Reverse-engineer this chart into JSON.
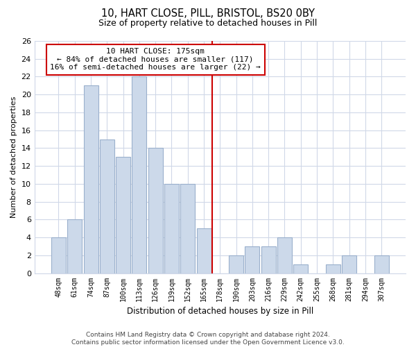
{
  "title": "10, HART CLOSE, PILL, BRISTOL, BS20 0BY",
  "subtitle": "Size of property relative to detached houses in Pill",
  "xlabel": "Distribution of detached houses by size in Pill",
  "ylabel": "Number of detached properties",
  "bar_labels": [
    "48sqm",
    "61sqm",
    "74sqm",
    "87sqm",
    "100sqm",
    "113sqm",
    "126sqm",
    "139sqm",
    "152sqm",
    "165sqm",
    "178sqm",
    "190sqm",
    "203sqm",
    "216sqm",
    "229sqm",
    "242sqm",
    "255sqm",
    "268sqm",
    "281sqm",
    "294sqm",
    "307sqm"
  ],
  "bar_values": [
    4,
    6,
    21,
    15,
    13,
    22,
    14,
    10,
    10,
    5,
    0,
    2,
    3,
    3,
    4,
    1,
    0,
    1,
    2,
    0,
    2
  ],
  "bar_color": "#ccd9ea",
  "bar_edge_color": "#9ab0cc",
  "highlight_line_color": "#cc0000",
  "annotation_title": "10 HART CLOSE: 175sqm",
  "annotation_line1": "← 84% of detached houses are smaller (117)",
  "annotation_line2": "16% of semi-detached houses are larger (22) →",
  "annotation_box_color": "#ffffff",
  "annotation_box_edge_color": "#cc0000",
  "ylim": [
    0,
    26
  ],
  "yticks": [
    0,
    2,
    4,
    6,
    8,
    10,
    12,
    14,
    16,
    18,
    20,
    22,
    24,
    26
  ],
  "footer_line1": "Contains HM Land Registry data © Crown copyright and database right 2024.",
  "footer_line2": "Contains public sector information licensed under the Open Government Licence v3.0.",
  "background_color": "#ffffff",
  "grid_color": "#d0d8e8",
  "highlight_bar_index": 10
}
